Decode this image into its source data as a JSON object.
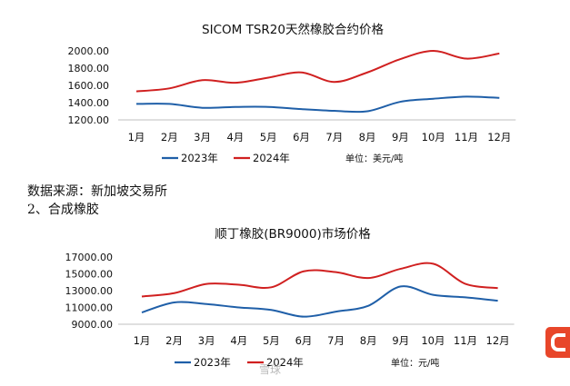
{
  "chart_data": [
    {
      "type": "line",
      "title": "SICOM TSR20天然橡胶合约价格",
      "categories": [
        "1月",
        "2月",
        "3月",
        "4月",
        "5月",
        "6月",
        "7月",
        "8月",
        "9月",
        "10月",
        "11月",
        "12月"
      ],
      "series": [
        {
          "name": "2023年",
          "color": "#1f5fa8",
          "values": [
            1385,
            1385,
            1340,
            1350,
            1350,
            1325,
            1305,
            1300,
            1410,
            1445,
            1470,
            1455
          ]
        },
        {
          "name": "2024年",
          "color": "#d02020",
          "values": [
            1530,
            1565,
            1660,
            1630,
            1690,
            1750,
            1640,
            1750,
            1905,
            2000,
            1910,
            1970
          ]
        }
      ],
      "yticks": [
        "2000.00",
        "1800.00",
        "1600.00",
        "1400.00",
        "1200.00"
      ],
      "ylim": [
        1200,
        2000
      ],
      "unit_note": "单位：美元/吨"
    },
    {
      "type": "line",
      "title": "顺丁橡胶(BR9000)市场价格",
      "categories": [
        "1月",
        "2月",
        "3月",
        "4月",
        "5月",
        "6月",
        "7月",
        "8月",
        "9月",
        "10月",
        "11月",
        "12月"
      ],
      "series": [
        {
          "name": "2023年",
          "color": "#1f5fa8",
          "values": [
            10400,
            11600,
            11400,
            11000,
            10700,
            9900,
            10500,
            11200,
            13500,
            12500,
            12200,
            11800
          ]
        },
        {
          "name": "2024年",
          "color": "#d02020",
          "values": [
            12300,
            12700,
            13800,
            13700,
            13400,
            15300,
            15200,
            14500,
            15600,
            16200,
            13800,
            13300
          ]
        }
      ],
      "yticks": [
        "17000.00",
        "15000.00",
        "13000.00",
        "11000.00",
        "9000.00"
      ],
      "ylim": [
        9000,
        17000
      ],
      "unit_note": "单位：元/吨"
    }
  ],
  "text": {
    "source_line": "数据来源：新加坡交易所",
    "section_heading": "2、合成橡胶"
  },
  "watermark": {
    "text": "雪球"
  },
  "brand_icon": "sohu-logo-icon"
}
